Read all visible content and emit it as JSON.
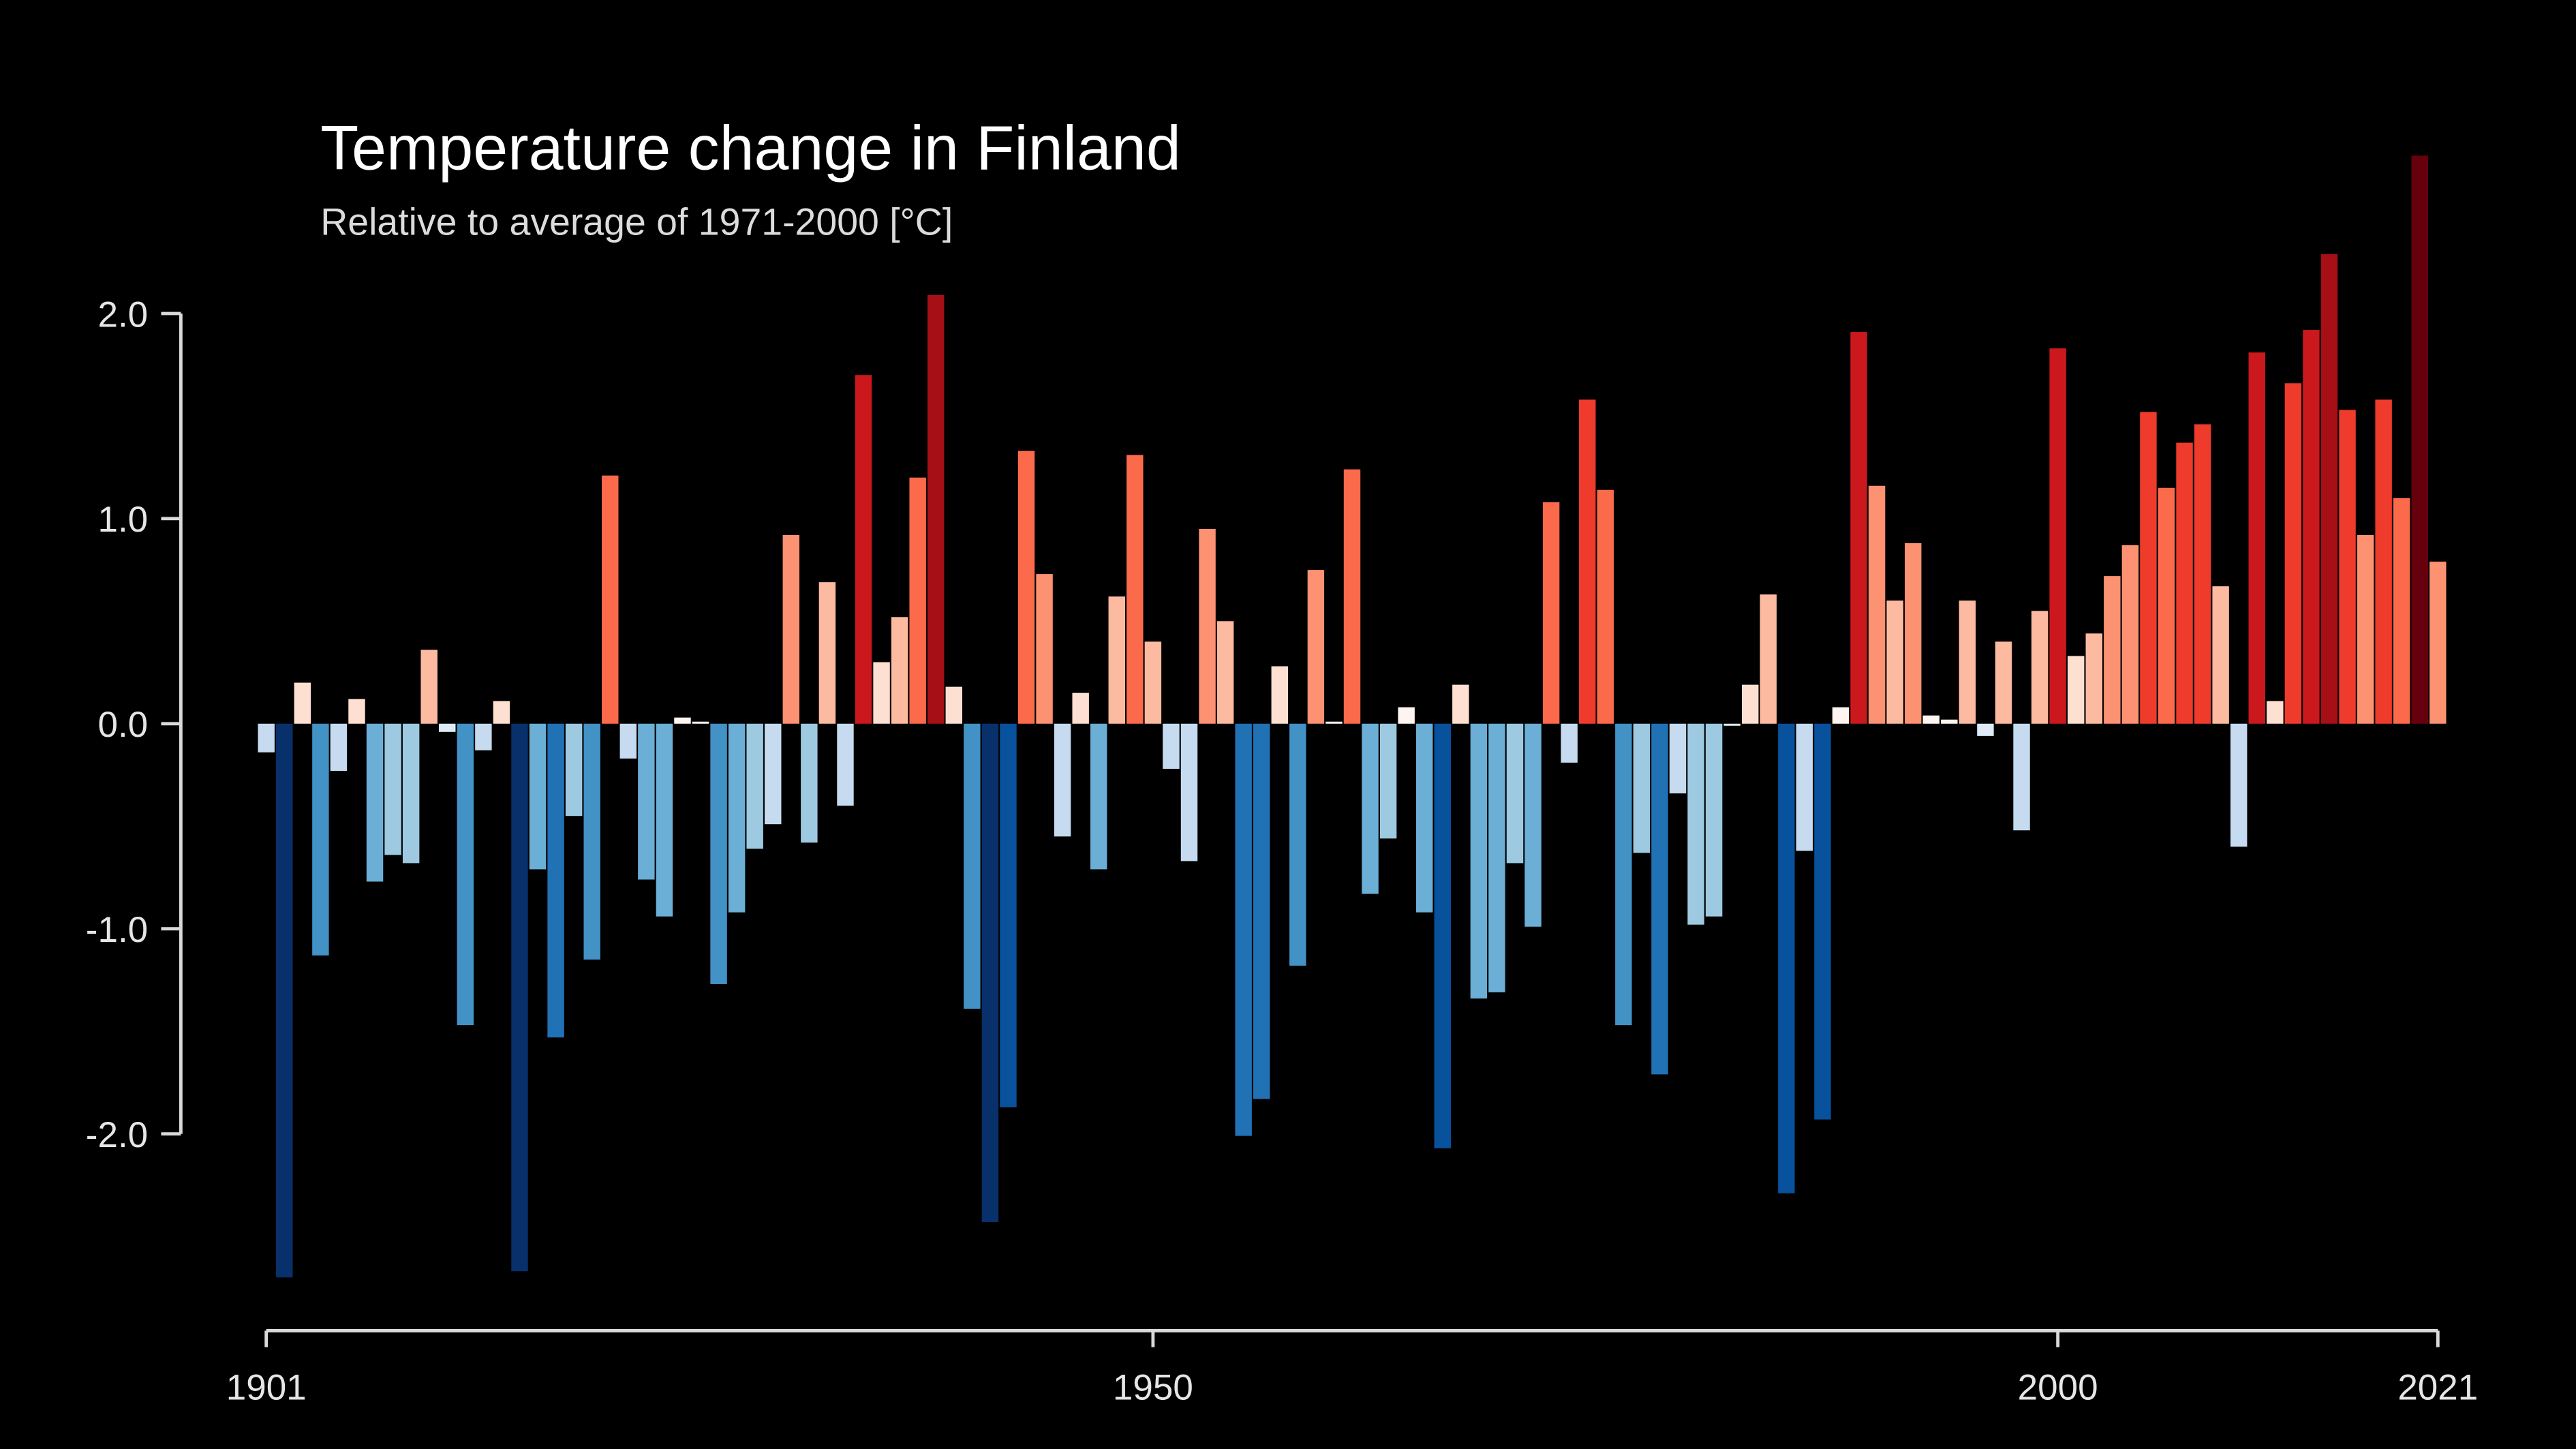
{
  "chart_data": {
    "type": "bar",
    "title": "Temperature change in Finland",
    "subtitle": "Relative to average of 1971-2000  [°C]",
    "x": [
      1901,
      1902,
      1903,
      1904,
      1905,
      1906,
      1907,
      1908,
      1909,
      1910,
      1911,
      1912,
      1913,
      1914,
      1915,
      1916,
      1917,
      1918,
      1919,
      1920,
      1921,
      1922,
      1923,
      1924,
      1925,
      1926,
      1927,
      1928,
      1929,
      1930,
      1931,
      1932,
      1933,
      1934,
      1935,
      1936,
      1937,
      1938,
      1939,
      1940,
      1941,
      1942,
      1943,
      1944,
      1945,
      1946,
      1947,
      1948,
      1949,
      1950,
      1951,
      1952,
      1953,
      1954,
      1955,
      1956,
      1957,
      1958,
      1959,
      1960,
      1961,
      1962,
      1963,
      1964,
      1965,
      1966,
      1967,
      1968,
      1969,
      1970,
      1971,
      1972,
      1973,
      1974,
      1975,
      1976,
      1977,
      1978,
      1979,
      1980,
      1981,
      1982,
      1983,
      1984,
      1985,
      1986,
      1987,
      1988,
      1989,
      1990,
      1991,
      1992,
      1993,
      1994,
      1995,
      1996,
      1997,
      1998,
      1999,
      2000,
      2001,
      2002,
      2003,
      2004,
      2005,
      2006,
      2007,
      2008,
      2009,
      2010,
      2011,
      2012,
      2013,
      2014,
      2015,
      2016,
      2017,
      2018,
      2019,
      2020,
      2021
    ],
    "values": [
      -0.14,
      -2.7,
      0.2,
      -1.13,
      -0.23,
      0.12,
      -0.77,
      -0.64,
      -0.68,
      0.36,
      -0.04,
      -1.47,
      -0.13,
      0.11,
      -2.67,
      -0.71,
      -1.53,
      -0.45,
      -1.15,
      1.21,
      -0.17,
      -0.76,
      -0.94,
      0.03,
      0.01,
      -1.27,
      -0.92,
      -0.61,
      -0.49,
      0.92,
      -0.58,
      0.69,
      -0.4,
      1.7,
      0.3,
      0.52,
      1.2,
      2.09,
      0.18,
      -1.39,
      -2.43,
      -1.87,
      1.33,
      0.73,
      -0.55,
      0.15,
      -0.71,
      0.62,
      1.31,
      0.4,
      -0.22,
      -0.67,
      0.95,
      0.5,
      -2.01,
      -1.83,
      0.28,
      -1.18,
      0.75,
      0.01,
      1.24,
      -0.83,
      -0.56,
      0.08,
      -0.92,
      -2.07,
      0.19,
      -1.34,
      -1.31,
      -0.68,
      -0.99,
      1.08,
      -0.19,
      1.58,
      1.14,
      -1.47,
      -0.63,
      -1.71,
      -0.34,
      -0.98,
      -0.94,
      -0.01,
      0.19,
      0.63,
      -2.29,
      -0.62,
      -1.93,
      0.08,
      1.91,
      1.16,
      0.6,
      0.88,
      0.04,
      0.02,
      0.6,
      -0.06,
      0.4,
      -0.52,
      0.55,
      1.83,
      0.33,
      0.44,
      0.72,
      0.87,
      1.52,
      1.15,
      1.37,
      1.46,
      0.67,
      -0.6,
      1.81,
      0.11,
      1.66,
      1.92,
      2.29,
      1.53,
      0.92,
      1.58,
      1.1,
      2.77,
      0.79
    ],
    "colors": [
      "#c6dbef",
      "#08306b",
      "#fee0d2",
      "#4292c6",
      "#c6dbef",
      "#fee0d2",
      "#6baed6",
      "#9ecae1",
      "#9ecae1",
      "#fcbba1",
      "#deebf7",
      "#4292c6",
      "#c6dbef",
      "#fee0d2",
      "#08306b",
      "#6baed6",
      "#2171b5",
      "#9ecae1",
      "#4292c6",
      "#fb6a4a",
      "#c6dbef",
      "#6baed6",
      "#6baed6",
      "#fff5f0",
      "#fff5f0",
      "#4292c6",
      "#6baed6",
      "#9ecae1",
      "#c6dbef",
      "#fc9272",
      "#9ecae1",
      "#fcbba1",
      "#c6dbef",
      "#cb181d",
      "#fee0d2",
      "#fcbba1",
      "#fb6a4a",
      "#a50f15",
      "#fee0d2",
      "#4292c6",
      "#08306b",
      "#08519c",
      "#fb6a4a",
      "#fc9272",
      "#c6dbef",
      "#fee0d2",
      "#6baed6",
      "#fcbba1",
      "#fb6a4a",
      "#fcbba1",
      "#c6dbef",
      "#c6dbef",
      "#fc9272",
      "#fcbba1",
      "#2171b5",
      "#2171b5",
      "#fee0d2",
      "#4292c6",
      "#fc9272",
      "#fff5f0",
      "#fb6a4a",
      "#6baed6",
      "#9ecae1",
      "#fff5f0",
      "#6baed6",
      "#08519c",
      "#fee0d2",
      "#6baed6",
      "#6baed6",
      "#9ecae1",
      "#6baed6",
      "#fb6a4a",
      "#c6dbef",
      "#ef3b2c",
      "#fb6a4a",
      "#4292c6",
      "#9ecae1",
      "#2171b5",
      "#c6dbef",
      "#9ecae1",
      "#9ecae1",
      "#deebf7",
      "#fee0d2",
      "#fcbba1",
      "#08519c",
      "#c6dbef",
      "#08519c",
      "#fff5f0",
      "#cb181d",
      "#fc9272",
      "#fcbba1",
      "#fc9272",
      "#fff5f0",
      "#fff5f0",
      "#fcbba1",
      "#deebf7",
      "#fcbba1",
      "#c6dbef",
      "#fcbba1",
      "#cb181d",
      "#fee0d2",
      "#fcbba1",
      "#fc9272",
      "#fc9272",
      "#ef3b2c",
      "#fb6a4a",
      "#ef3b2c",
      "#ef3b2c",
      "#fcbba1",
      "#c6dbef",
      "#cb181d",
      "#fee0d2",
      "#ef3b2c",
      "#cb181d",
      "#a50f15",
      "#ef3b2c",
      "#fc9272",
      "#ef3b2c",
      "#fb6a4a",
      "#67000d",
      "#fc9272"
    ],
    "xlim": [
      1901,
      2021
    ],
    "xticks": [
      1901,
      1950,
      2000,
      2021
    ],
    "ylim": [
      -3,
      3
    ],
    "yticks": [
      {
        "value": -2,
        "label": "-2.0"
      },
      {
        "value": -1,
        "label": "-1.0"
      },
      {
        "value": 0,
        "label": "0.0"
      },
      {
        "value": 1,
        "label": "1.0"
      },
      {
        "value": 2,
        "label": "2.0"
      }
    ],
    "grid": false
  }
}
